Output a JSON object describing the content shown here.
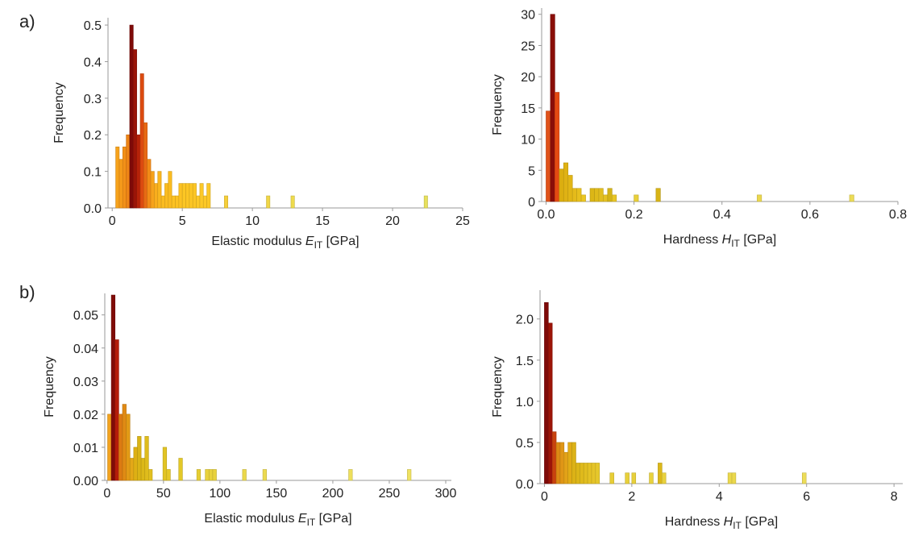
{
  "figure": {
    "label_a": "a)",
    "label_b": "b)"
  },
  "chart_data": [
    {
      "type": "bar",
      "id": "a-modulus",
      "xlabel": "Elastic modulus",
      "xlabel_symbol": "E",
      "xlabel_sub": "IT",
      "xlabel_unit": "[GPa]",
      "ylabel": "Frequency",
      "xlim": [
        -0.3,
        25
      ],
      "ylim": [
        0,
        0.52
      ],
      "xticks": [
        0,
        5,
        10,
        15,
        20,
        25
      ],
      "xtick_labels": [
        "0",
        "5",
        "10",
        "15",
        "20",
        "25"
      ],
      "yticks": [
        0,
        0.1,
        0.2,
        0.3,
        0.4,
        0.5
      ],
      "ytick_labels": [
        "0.0",
        "0.1",
        "0.2",
        "0.3",
        "0.4",
        "0.5"
      ],
      "bin_width": 0.25,
      "bins": [
        {
          "x": 0.25,
          "value": 0.167,
          "color": "#f7a21b"
        },
        {
          "x": 0.5,
          "value": 0.133,
          "color": "#f59a1a"
        },
        {
          "x": 0.75,
          "value": 0.167,
          "color": "#f39018"
        },
        {
          "x": 1.0,
          "value": 0.2,
          "color": "#ee8416"
        },
        {
          "x": 1.25,
          "value": 0.5,
          "color": "#7e0a08"
        },
        {
          "x": 1.5,
          "value": 0.433,
          "color": "#9a1408"
        },
        {
          "x": 1.75,
          "value": 0.2,
          "color": "#b62209"
        },
        {
          "x": 2.0,
          "value": 0.367,
          "color": "#dc4a10"
        },
        {
          "x": 2.25,
          "value": 0.233,
          "color": "#e86a14"
        },
        {
          "x": 2.5,
          "value": 0.133,
          "color": "#f28a17"
        },
        {
          "x": 2.75,
          "value": 0.1,
          "color": "#f7a21b"
        },
        {
          "x": 3.0,
          "value": 0.067,
          "color": "#f9ae1d"
        },
        {
          "x": 3.25,
          "value": 0.1,
          "color": "#fab61f"
        },
        {
          "x": 3.5,
          "value": 0.033,
          "color": "#fbbc20"
        },
        {
          "x": 3.75,
          "value": 0.067,
          "color": "#fbbc20"
        },
        {
          "x": 4.0,
          "value": 0.1,
          "color": "#fbbc20"
        },
        {
          "x": 4.25,
          "value": 0.033,
          "color": "#fcc222"
        },
        {
          "x": 4.5,
          "value": 0.033,
          "color": "#fcc222"
        },
        {
          "x": 4.75,
          "value": 0.067,
          "color": "#fcc222"
        },
        {
          "x": 5.0,
          "value": 0.067,
          "color": "#fcc624"
        },
        {
          "x": 5.25,
          "value": 0.067,
          "color": "#fcc624"
        },
        {
          "x": 5.5,
          "value": 0.067,
          "color": "#fcc624"
        },
        {
          "x": 5.75,
          "value": 0.067,
          "color": "#fcc624"
        },
        {
          "x": 6.0,
          "value": 0.033,
          "color": "#fcc827"
        },
        {
          "x": 6.25,
          "value": 0.067,
          "color": "#fcc827"
        },
        {
          "x": 6.5,
          "value": 0.033,
          "color": "#fcc827"
        },
        {
          "x": 6.75,
          "value": 0.067,
          "color": "#fcc827"
        },
        {
          "x": 8.0,
          "value": 0.033,
          "color": "#f6cf3a"
        },
        {
          "x": 11.0,
          "value": 0.033,
          "color": "#f0d646"
        },
        {
          "x": 12.75,
          "value": 0.033,
          "color": "#eedb4c"
        },
        {
          "x": 22.25,
          "value": 0.033,
          "color": "#e7e05c"
        }
      ]
    },
    {
      "type": "bar",
      "id": "a-hardness",
      "xlabel": "Hardness",
      "xlabel_symbol": "H",
      "xlabel_sub": "IT",
      "xlabel_unit": "[GPa]",
      "ylabel": "Frequency",
      "xlim": [
        -0.01,
        0.8
      ],
      "ylim": [
        0,
        31
      ],
      "xticks": [
        0.0,
        0.2,
        0.4,
        0.6,
        0.8
      ],
      "xtick_labels": [
        "0.0",
        "0.2",
        "0.4",
        "0.6",
        "0.8"
      ],
      "yticks": [
        0,
        5,
        10,
        15,
        20,
        25,
        30
      ],
      "ytick_labels": [
        "0",
        "5",
        "10",
        "15",
        "20",
        "25",
        "30"
      ],
      "bin_width": 0.01,
      "bins": [
        {
          "x": 0.0,
          "value": 14.5,
          "color": "#e0521a"
        },
        {
          "x": 0.01,
          "value": 30,
          "color": "#8a0e08"
        },
        {
          "x": 0.02,
          "value": 17.5,
          "color": "#e44a12"
        },
        {
          "x": 0.03,
          "value": 5.2,
          "color": "#dcae10"
        },
        {
          "x": 0.04,
          "value": 6.2,
          "color": "#dfb214"
        },
        {
          "x": 0.05,
          "value": 4.2,
          "color": "#e2b616"
        },
        {
          "x": 0.06,
          "value": 2.1,
          "color": "#e5bb1a"
        },
        {
          "x": 0.07,
          "value": 2.1,
          "color": "#e8c01e"
        },
        {
          "x": 0.08,
          "value": 1.05,
          "color": "#ebc622"
        },
        {
          "x": 0.1,
          "value": 2.1,
          "color": "#dcb616"
        },
        {
          "x": 0.11,
          "value": 2.1,
          "color": "#dfba1a"
        },
        {
          "x": 0.12,
          "value": 2.1,
          "color": "#e2be1e"
        },
        {
          "x": 0.13,
          "value": 1.05,
          "color": "#e5c222"
        },
        {
          "x": 0.14,
          "value": 2.1,
          "color": "#d4b418"
        },
        {
          "x": 0.15,
          "value": 1.05,
          "color": "#e8c626"
        },
        {
          "x": 0.2,
          "value": 1.05,
          "color": "#e9d03a"
        },
        {
          "x": 0.25,
          "value": 2.1,
          "color": "#d8b416"
        },
        {
          "x": 0.48,
          "value": 1.05,
          "color": "#ebd84e"
        },
        {
          "x": 0.69,
          "value": 1.05,
          "color": "#ecdc56"
        }
      ]
    },
    {
      "type": "bar",
      "id": "b-modulus",
      "xlabel": "Elastic modulus",
      "xlabel_symbol": "E",
      "xlabel_sub": "IT",
      "xlabel_unit": "[GPa]",
      "ylabel": "Frequency",
      "xlim": [
        -2,
        305
      ],
      "ylim": [
        0,
        0.0565
      ],
      "xticks": [
        0,
        50,
        100,
        150,
        200,
        250,
        300
      ],
      "xtick_labels": [
        "0",
        "50",
        "100",
        "150",
        "200",
        "250",
        "300"
      ],
      "yticks": [
        0,
        0.01,
        0.02,
        0.03,
        0.04,
        0.05
      ],
      "ytick_labels": [
        "0.00",
        "0.01",
        "0.02",
        "0.03",
        "0.04",
        "0.05"
      ],
      "bin_width": 3.3,
      "bins": [
        {
          "x": 0.5,
          "value": 0.02,
          "color": "#f2a21e"
        },
        {
          "x": 3.8,
          "value": 0.056,
          "color": "#800c08"
        },
        {
          "x": 7.1,
          "value": 0.0425,
          "color": "#b41c0a"
        },
        {
          "x": 10.4,
          "value": 0.02,
          "color": "#dc7a12"
        },
        {
          "x": 13.7,
          "value": 0.023,
          "color": "#e08a14"
        },
        {
          "x": 17.0,
          "value": 0.02,
          "color": "#e29a16"
        },
        {
          "x": 20.3,
          "value": 0.0067,
          "color": "#e4a818"
        },
        {
          "x": 23.6,
          "value": 0.01,
          "color": "#deb014"
        },
        {
          "x": 26.9,
          "value": 0.0133,
          "color": "#dab416"
        },
        {
          "x": 30.2,
          "value": 0.0067,
          "color": "#dcb818"
        },
        {
          "x": 33.5,
          "value": 0.0133,
          "color": "#dfbc1c"
        },
        {
          "x": 36.8,
          "value": 0.0033,
          "color": "#e2c020"
        },
        {
          "x": 49.5,
          "value": 0.01,
          "color": "#e2c424"
        },
        {
          "x": 52.8,
          "value": 0.0033,
          "color": "#e5c828"
        },
        {
          "x": 63.5,
          "value": 0.0067,
          "color": "#e3c828"
        },
        {
          "x": 79.5,
          "value": 0.0033,
          "color": "#e6ce34"
        },
        {
          "x": 87.0,
          "value": 0.0033,
          "color": "#e8d23c"
        },
        {
          "x": 90.3,
          "value": 0.0033,
          "color": "#e8d23c"
        },
        {
          "x": 93.6,
          "value": 0.0033,
          "color": "#e8d23c"
        },
        {
          "x": 120.0,
          "value": 0.0033,
          "color": "#ebd84a"
        },
        {
          "x": 138.0,
          "value": 0.0033,
          "color": "#ecda50"
        },
        {
          "x": 214.0,
          "value": 0.0033,
          "color": "#eedf5c"
        },
        {
          "x": 266.0,
          "value": 0.0033,
          "color": "#efe262"
        }
      ]
    },
    {
      "type": "bar",
      "id": "b-hardness",
      "xlabel": "Hardness",
      "xlabel_symbol": "H",
      "xlabel_sub": "IT",
      "xlabel_unit": "[GPa]",
      "ylabel": "Frequency",
      "xlim": [
        -0.1,
        8.2
      ],
      "ylim": [
        0,
        2.35
      ],
      "xticks": [
        0,
        2,
        4,
        6,
        8
      ],
      "xtick_labels": [
        "0",
        "2",
        "4",
        "6",
        "8"
      ],
      "yticks": [
        0,
        0.5,
        1.0,
        1.5,
        2.0
      ],
      "ytick_labels": [
        "0.0",
        "0.5",
        "1.0",
        "1.5",
        "2.0"
      ],
      "bin_width": 0.09,
      "bins": [
        {
          "x": 0.0,
          "value": 2.2,
          "color": "#7e0a08"
        },
        {
          "x": 0.09,
          "value": 1.95,
          "color": "#9c1408"
        },
        {
          "x": 0.18,
          "value": 0.63,
          "color": "#c8420e"
        },
        {
          "x": 0.27,
          "value": 0.5,
          "color": "#dc8a14"
        },
        {
          "x": 0.36,
          "value": 0.5,
          "color": "#e09616"
        },
        {
          "x": 0.45,
          "value": 0.38,
          "color": "#e2a218"
        },
        {
          "x": 0.54,
          "value": 0.5,
          "color": "#e2ac16"
        },
        {
          "x": 0.63,
          "value": 0.5,
          "color": "#dcb216"
        },
        {
          "x": 0.72,
          "value": 0.25,
          "color": "#dcb618"
        },
        {
          "x": 0.81,
          "value": 0.25,
          "color": "#dfba1c"
        },
        {
          "x": 0.9,
          "value": 0.25,
          "color": "#e2be20"
        },
        {
          "x": 0.99,
          "value": 0.25,
          "color": "#e5c224"
        },
        {
          "x": 1.08,
          "value": 0.25,
          "color": "#e5c428"
        },
        {
          "x": 1.17,
          "value": 0.25,
          "color": "#e6c82c"
        },
        {
          "x": 1.5,
          "value": 0.13,
          "color": "#e8ce36"
        },
        {
          "x": 1.85,
          "value": 0.13,
          "color": "#e8d03a"
        },
        {
          "x": 2.0,
          "value": 0.13,
          "color": "#e8d03a"
        },
        {
          "x": 2.4,
          "value": 0.13,
          "color": "#e9d23e"
        },
        {
          "x": 2.6,
          "value": 0.25,
          "color": "#dcb81a"
        },
        {
          "x": 2.69,
          "value": 0.13,
          "color": "#e9d23e"
        },
        {
          "x": 4.2,
          "value": 0.13,
          "color": "#ebd84c"
        },
        {
          "x": 4.29,
          "value": 0.13,
          "color": "#ebd84c"
        },
        {
          "x": 5.9,
          "value": 0.13,
          "color": "#eddd58"
        }
      ]
    }
  ]
}
